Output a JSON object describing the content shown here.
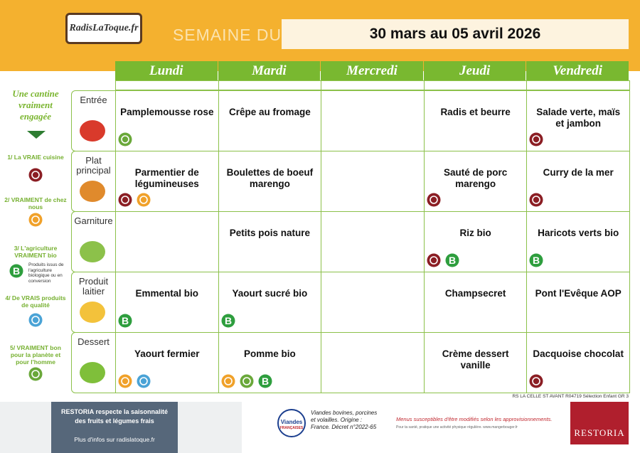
{
  "header": {
    "logo": "RadisLaToque.fr",
    "week_label": "SEMAINE DU",
    "dates": "30 mars au 05 avril 2026"
  },
  "days": [
    "Lundi",
    "Mardi",
    "Mercredi",
    "Jeudi",
    "Vendredi"
  ],
  "rows": [
    {
      "course": "Entrée",
      "cells": [
        "Pamplemousse rose",
        "Crêpe au fromage",
        null,
        "Radis et beurre",
        "Salade verte, maïs et jambon"
      ]
    },
    {
      "course": "Plat principal",
      "cells": [
        "Parmentier de légumineuses",
        "Boulettes de boeuf marengo",
        null,
        "Sauté de porc marengo",
        "Curry de la mer"
      ]
    },
    {
      "course": "Garniture",
      "cells": [
        null,
        "Petits pois nature",
        null,
        "Riz bio",
        "Haricots verts bio"
      ]
    },
    {
      "course": "Produit laitier",
      "cells": [
        "Emmental bio",
        "Yaourt sucré bio",
        null,
        "Champsecret",
        "Pont l'Evêque AOP"
      ]
    },
    {
      "course": "Dessert",
      "cells": [
        "Yaourt fermier",
        "Pomme bio",
        null,
        "Crème dessert vanille",
        "Dacquoise chocolat"
      ]
    }
  ],
  "bio_letter": "B",
  "sidebar": {
    "title": "Une cantine vraiment engagée",
    "items": [
      "1/ La VRAIE cuisine",
      "2/ VRAIMENT de chez nous",
      "3/ L'agriculture VRAIMENT bio",
      "4/ De VRAIS produits de qualité",
      "5/ VRAIMENT bon pour la planète et pour l'homme"
    ],
    "bio_note": "Produits issus de l'agriculture biologique ou en conversion"
  },
  "footer": {
    "reference": "RS LA CELLE ST AVANT R04719 Sélection Enfant GR 3",
    "banner_text": "RESTORIA respecte la saisonnalité des fruits et légumes frais",
    "more_info": "Plus d'infos sur radislatoque.fr",
    "viandes_logo": "Viandes",
    "viandes_logo_sub": "FRANÇAISES",
    "viandes_text": "Viandes bovines, porcines et volailles. Origine : France. Décret n°2022-65",
    "notice": "Menus susceptibles d'être modifiés selon les approvisionnements.",
    "health": "Pour ta santé, pratique une activité physique régulière. www.mangerbouger.fr",
    "brand": "RESTORIA"
  }
}
